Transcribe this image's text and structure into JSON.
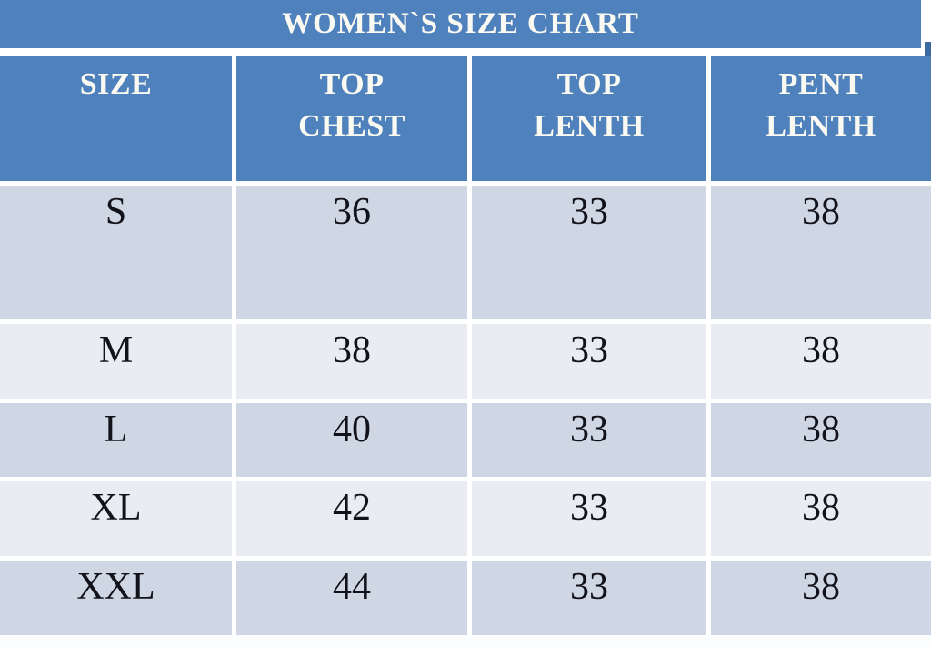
{
  "title": "WOMEN`S SIZE CHART",
  "table": {
    "columns": [
      "SIZE",
      "TOP CHEST",
      "TOP LENTH",
      "PENT LENTH"
    ],
    "rows": [
      {
        "label": "S",
        "values": [
          "36",
          "33",
          "38"
        ]
      },
      {
        "label": "M",
        "values": [
          "38",
          "33",
          "38"
        ]
      },
      {
        "label": "L",
        "values": [
          "40",
          "33",
          "38"
        ]
      },
      {
        "label": "XL",
        "values": [
          "42",
          "33",
          "38"
        ]
      },
      {
        "label": "XXL",
        "values": [
          "44",
          "33",
          "38"
        ]
      }
    ]
  },
  "colors": {
    "header_blue": "#4F81BD",
    "corner_blue_dark": "#3C699F",
    "row_band_dark": "#CFD6E4",
    "row_band_light": "#E9EDF3",
    "header_text": "#FBFAF2",
    "body_text": "#12121A",
    "gridline": "#FFFFFF"
  },
  "chart_data": {
    "type": "table",
    "title": "WOMEN`S SIZE CHART",
    "columns": [
      "SIZE",
      "TOP CHEST",
      "TOP LENTH",
      "PENT LENTH"
    ],
    "rows": [
      [
        "S",
        36,
        33,
        38
      ],
      [
        "M",
        38,
        33,
        38
      ],
      [
        "L",
        40,
        33,
        38
      ],
      [
        "XL",
        42,
        33,
        38
      ],
      [
        "XXL",
        44,
        33,
        38
      ]
    ],
    "layout": {
      "banded_rows": true,
      "header_fill": "#4F81BD",
      "grid": "white 5px separators"
    }
  }
}
